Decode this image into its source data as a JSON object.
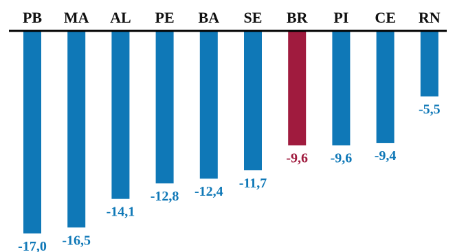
{
  "chart_data": {
    "type": "bar",
    "orientation": "vertical-downward",
    "categories": [
      "PB",
      "MA",
      "AL",
      "PE",
      "BA",
      "SE",
      "BR",
      "PI",
      "CE",
      "RN"
    ],
    "values": [
      -17.0,
      -16.5,
      -14.1,
      -12.8,
      -12.4,
      -11.7,
      -9.6,
      -9.6,
      -9.4,
      -5.5
    ],
    "value_labels": [
      "-17,0",
      "-16,5",
      "-14,1",
      "-12,8",
      "-12,4",
      "-11,7",
      "-9,6",
      "-9,6",
      "-9,4",
      "-5,5"
    ],
    "highlight_category": "BR",
    "title": "",
    "xlabel": "",
    "ylabel": "",
    "ylim": [
      -17.0,
      0
    ],
    "grid": false,
    "legend": "none",
    "colors": {
      "default_bar": "#0F78B7",
      "highlight_bar": "#A01B3E",
      "axis_line": "#000000",
      "category_label": "#111111"
    }
  }
}
